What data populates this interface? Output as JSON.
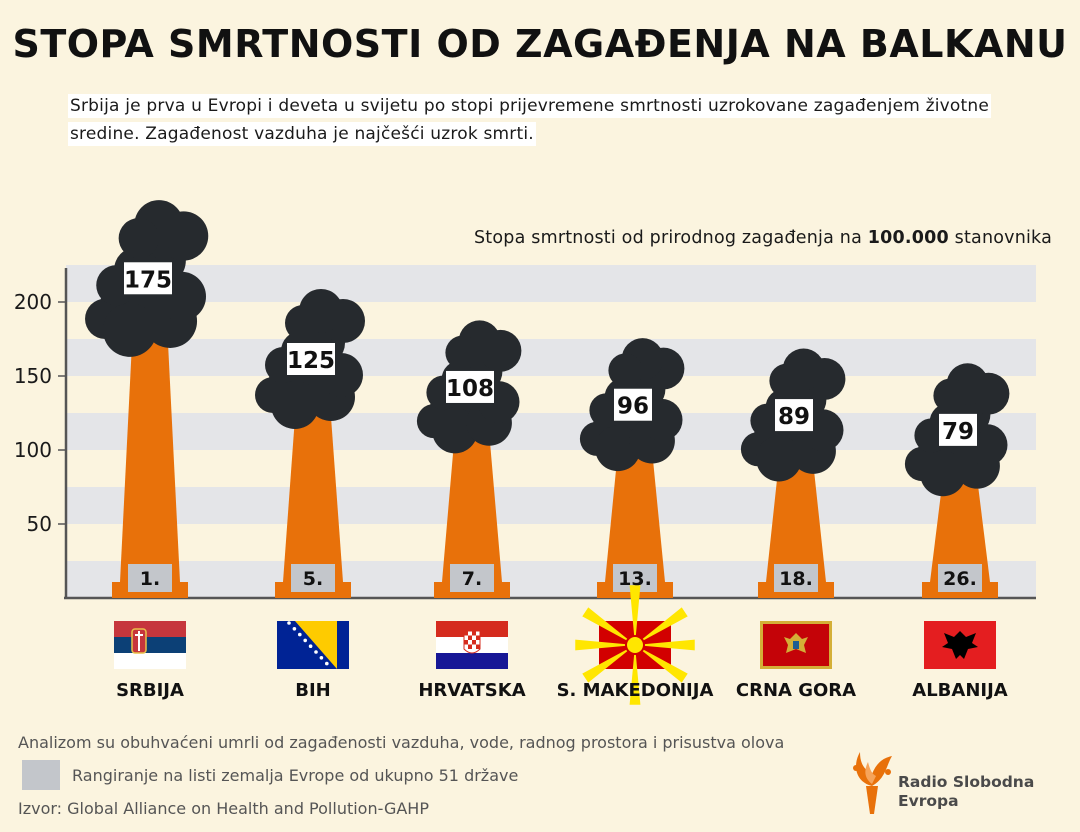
{
  "header": {
    "title": "STOPA SMRTNOSTI OD ZAGAĐENJA NA BALKANU",
    "subtitle": "Srbija je prva u Evropi i deveta u svijetu po stopi prijevremene smrtnosti uzrokovane zagađenjem životne sredine. Zagađenost vazduha je najčešći uzrok smrti."
  },
  "chart_data": {
    "type": "bar",
    "title": "",
    "caption_prefix": "Stopa smrtnosti od prirodnog zagađenja na ",
    "caption_bold": "100.000",
    "caption_suffix": " stanovnika",
    "categories": [
      "SRBIJA",
      "BIH",
      "HRVATSKA",
      "S. MAKEDONIJA",
      "CRNA GORA",
      "ALBANIJA"
    ],
    "values": [
      175,
      125,
      108,
      96,
      89,
      79
    ],
    "value_labels": [
      "175",
      "125",
      "108",
      "96",
      "89",
      "79"
    ],
    "ranks": [
      "1.",
      "5.",
      "7.",
      "13.",
      "18.",
      "26."
    ],
    "y_ticks": [
      50,
      100,
      150,
      200
    ],
    "y_tick_labels": [
      "50",
      "100",
      "150",
      "200"
    ],
    "ylim": [
      0,
      225
    ],
    "grid": "alternating bands",
    "colors": {
      "bar": "#e8710a",
      "smoke": "#262a2e",
      "band": "#e4e5e8",
      "rank_box": "#c3c6cb",
      "axis": "#555555"
    }
  },
  "footer": {
    "note": "Analizom su obuhvaćeni umrli od zagađenosti vazduha, vode, radnog prostora i prisustva olova",
    "legend_label": "Rangiranje na listi zemalja Evrope od ukupno 51 države",
    "source": "Izvor: Global Alliance on Health and Pollution-GAHP"
  },
  "logo": {
    "line1": "Radio Slobodna",
    "line2": "Evropa",
    "icon": "torch-icon",
    "color": "#e8710a"
  },
  "flags": [
    "serbia-flag-icon",
    "bih-flag-icon",
    "croatia-flag-icon",
    "north-macedonia-flag-icon",
    "montenegro-flag-icon",
    "albania-flag-icon"
  ]
}
